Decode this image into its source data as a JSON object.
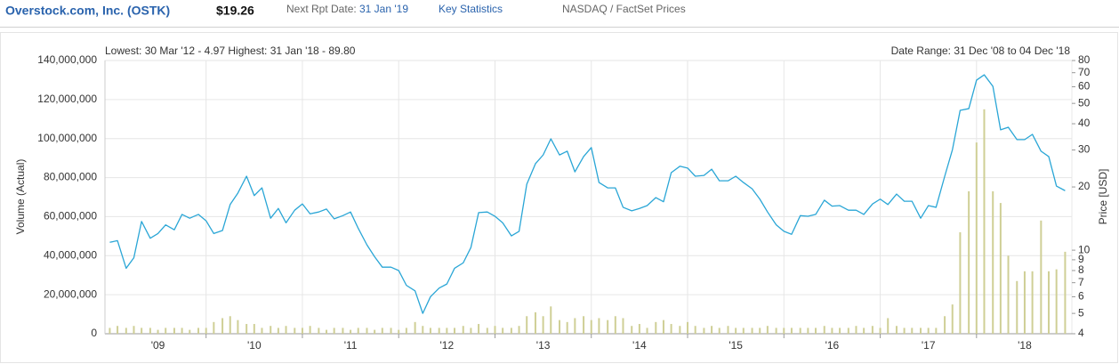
{
  "header": {
    "company": "Overstock.com, Inc. (OSTK)",
    "price": "$19.26",
    "next_rpt_label": "Next Rpt Date:",
    "next_rpt_date": "31 Jan '19",
    "key_statistics": "Key Statistics",
    "source": "NASDAQ / FactSet Prices"
  },
  "chart_data": {
    "type": "combo",
    "annotations": [
      "Lowest: 30 Mar '12 - 4.97  Highest: 31 Jan '18 - 89.80",
      "Date Range: 31 Dec '08 to 04 Dec '18"
    ],
    "y_label": "Volume (Actual)",
    "y2_label": "Price [USD]",
    "xlim": [
      2008.95,
      2018.99
    ],
    "xticks": [
      {
        "value": 2009.5,
        "label": "'09"
      },
      {
        "value": 2010.5,
        "label": "'10"
      },
      {
        "value": 2011.5,
        "label": "'11"
      },
      {
        "value": 2012.5,
        "label": "'12"
      },
      {
        "value": 2013.5,
        "label": "'13"
      },
      {
        "value": 2014.5,
        "label": "'14"
      },
      {
        "value": 2015.5,
        "label": "'15"
      },
      {
        "value": 2016.5,
        "label": "'16"
      },
      {
        "value": 2017.5,
        "label": "'17"
      },
      {
        "value": 2018.5,
        "label": "'18"
      }
    ],
    "ylim": [
      0,
      140000000
    ],
    "yticks": [
      0,
      {
        "value": 20000000,
        "label": "20,000,000"
      },
      {
        "value": 40000000,
        "label": "40,000,000"
      },
      {
        "value": 60000000,
        "label": "60,000,000"
      },
      {
        "value": 80000000,
        "label": "80,000,000"
      },
      {
        "value": 100000000,
        "label": "100,000,000"
      },
      {
        "value": 120000000,
        "label": "120,000,000"
      },
      {
        "value": 140000000,
        "label": "140,000,000"
      }
    ],
    "y2lim": [
      4,
      80
    ],
    "y2log": true,
    "y2ticks": [
      4,
      5,
      6,
      7,
      8,
      9,
      10,
      20,
      30,
      40,
      50,
      60,
      70,
      80
    ],
    "grid": true,
    "x": [
      2009.0,
      2009.08,
      2009.17,
      2009.25,
      2009.33,
      2009.42,
      2009.5,
      2009.58,
      2009.67,
      2009.75,
      2009.83,
      2009.92,
      2010.0,
      2010.08,
      2010.17,
      2010.25,
      2010.33,
      2010.42,
      2010.5,
      2010.58,
      2010.67,
      2010.75,
      2010.83,
      2010.92,
      2011.0,
      2011.08,
      2011.17,
      2011.25,
      2011.33,
      2011.42,
      2011.5,
      2011.58,
      2011.67,
      2011.75,
      2011.83,
      2011.92,
      2012.0,
      2012.08,
      2012.17,
      2012.25,
      2012.33,
      2012.42,
      2012.5,
      2012.58,
      2012.67,
      2012.75,
      2012.83,
      2012.92,
      2013.0,
      2013.08,
      2013.17,
      2013.25,
      2013.33,
      2013.42,
      2013.5,
      2013.58,
      2013.67,
      2013.75,
      2013.83,
      2013.92,
      2014.0,
      2014.08,
      2014.17,
      2014.25,
      2014.33,
      2014.42,
      2014.5,
      2014.58,
      2014.67,
      2014.75,
      2014.83,
      2014.92,
      2015.0,
      2015.08,
      2015.17,
      2015.25,
      2015.33,
      2015.42,
      2015.5,
      2015.58,
      2015.67,
      2015.75,
      2015.83,
      2015.92,
      2016.0,
      2016.08,
      2016.17,
      2016.25,
      2016.33,
      2016.42,
      2016.5,
      2016.58,
      2016.67,
      2016.75,
      2016.83,
      2016.92,
      2017.0,
      2017.08,
      2017.17,
      2017.25,
      2017.33,
      2017.42,
      2017.5,
      2017.58,
      2017.67,
      2017.75,
      2017.83,
      2017.92,
      2018.0,
      2018.08,
      2018.17,
      2018.25,
      2018.33,
      2018.42,
      2018.5,
      2018.58,
      2018.67,
      2018.75,
      2018.83,
      2018.92
    ],
    "series": [
      {
        "name": "Volume",
        "type": "bar",
        "axis": "y",
        "color": "#cfcf96",
        "values": [
          3000000,
          4000000,
          3000000,
          4000000,
          3000000,
          3000000,
          2000000,
          3000000,
          3000000,
          3000000,
          2000000,
          3000000,
          3000000,
          6000000,
          8000000,
          9000000,
          7000000,
          5000000,
          5000000,
          3000000,
          4000000,
          3000000,
          4000000,
          3000000,
          3000000,
          4000000,
          3000000,
          2000000,
          3000000,
          3000000,
          2000000,
          3000000,
          3000000,
          2000000,
          3000000,
          3000000,
          2000000,
          3000000,
          6000000,
          4000000,
          3000000,
          3000000,
          3000000,
          3000000,
          4000000,
          3000000,
          5000000,
          3000000,
          4000000,
          3000000,
          3000000,
          4000000,
          9000000,
          11000000,
          9000000,
          14000000,
          7000000,
          6000000,
          8000000,
          9000000,
          7000000,
          8000000,
          7000000,
          9000000,
          8000000,
          4000000,
          5000000,
          3000000,
          6000000,
          7000000,
          5000000,
          4000000,
          6000000,
          4000000,
          3000000,
          4000000,
          3000000,
          4000000,
          3000000,
          3000000,
          3000000,
          3000000,
          4000000,
          3000000,
          3000000,
          3000000,
          3000000,
          3000000,
          3000000,
          4000000,
          3000000,
          3000000,
          3000000,
          4000000,
          3000000,
          4000000,
          3000000,
          8000000,
          4000000,
          3000000,
          3000000,
          3000000,
          3000000,
          3000000,
          9000000,
          15000000,
          52000000,
          73000000,
          98000000,
          115000000,
          73000000,
          67000000,
          40000000,
          27000000,
          32000000,
          32000000,
          58000000,
          32000000,
          33000000,
          42000000
        ]
      },
      {
        "name": "Price",
        "type": "line",
        "axis": "y2",
        "color": "#2aa6d6",
        "values": [
          10.9,
          11.1,
          8.2,
          9.2,
          13.7,
          11.4,
          12.0,
          13.2,
          12.5,
          14.8,
          14.2,
          14.8,
          13.8,
          12.0,
          12.4,
          16.5,
          18.7,
          22.5,
          18.2,
          19.8,
          14.2,
          15.8,
          13.5,
          15.5,
          16.6,
          14.9,
          15.2,
          15.7,
          14.1,
          14.6,
          15.2,
          12.7,
          10.6,
          9.3,
          8.3,
          8.3,
          8.0,
          6.8,
          6.4,
          5.0,
          6.0,
          6.6,
          6.9,
          8.2,
          8.7,
          10.3,
          15.1,
          15.2,
          14.5,
          13.5,
          11.7,
          12.3,
          20.6,
          25.8,
          28.4,
          33.9,
          28.4,
          29.6,
          23.6,
          27.9,
          30.8,
          21.0,
          19.8,
          19.8,
          16.0,
          15.4,
          15.8,
          16.3,
          17.8,
          17.0,
          23.4,
          25.1,
          24.6,
          22.5,
          22.7,
          24.3,
          21.4,
          21.4,
          22.5,
          21.0,
          19.6,
          17.5,
          15.2,
          13.2,
          12.3,
          11.9,
          14.6,
          14.5,
          14.8,
          17.3,
          16.2,
          16.3,
          15.5,
          15.5,
          14.8,
          16.6,
          17.5,
          16.5,
          18.5,
          17.1,
          17.1,
          14.2,
          16.3,
          16.0,
          22.5,
          30.1,
          46.3,
          47.2,
          64.5,
          68.4,
          60.3,
          37.4,
          38.5,
          33.6,
          33.6,
          35.6,
          29.6,
          27.9,
          20.2,
          19.2
        ]
      }
    ]
  }
}
